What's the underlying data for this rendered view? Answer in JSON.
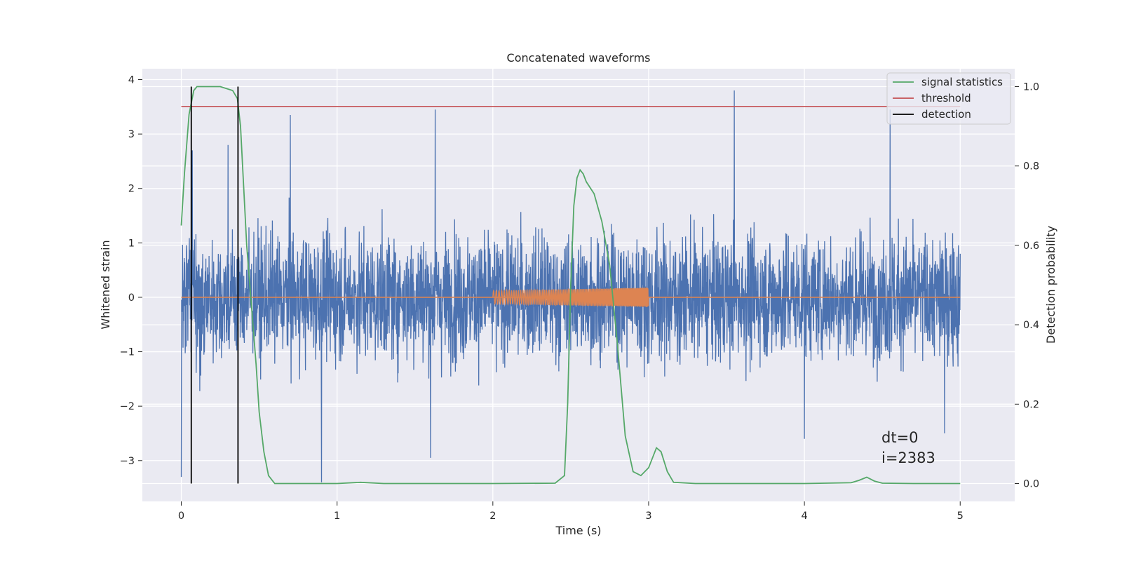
{
  "chart_data": {
    "type": "line",
    "title": "Concatenated waveforms",
    "xlabel": "Time (s)",
    "ylabel_left": "Whitened strain",
    "ylabel_right": "Detection probability",
    "xlim": [
      -0.25,
      5.35
    ],
    "ylim_left": [
      -3.75,
      4.2
    ],
    "ylim_right": [
      -0.045,
      1.045
    ],
    "x_ticks": [
      0,
      1,
      2,
      3,
      4,
      5
    ],
    "y_ticks_left": [
      -3,
      -2,
      -1,
      0,
      1,
      2,
      3,
      4
    ],
    "y_ticks_right": [
      0.0,
      0.2,
      0.4,
      0.6,
      0.8,
      1.0
    ],
    "y_tick_labels_left": [
      "−3",
      "−2",
      "−1",
      "0",
      "1",
      "2",
      "3",
      "4"
    ],
    "y_tick_labels_right": [
      "0.0",
      "0.2",
      "0.4",
      "0.6",
      "0.8",
      "1.0"
    ],
    "grid": true,
    "legend_position": "top-right",
    "colors": {
      "strain": "#4c72b0",
      "injection": "#dd8452",
      "signal_statistics": "#55a868",
      "threshold": "#c44e52",
      "detection": "#000000",
      "background": "#eaeaf2",
      "grid": "#ffffff"
    },
    "series": [
      {
        "name": "",
        "axis": "left",
        "kind": "noise",
        "x_range": [
          0,
          5
        ],
        "envelope": [
          -3.3,
          3.8
        ],
        "peaks": [
          [
            0.07,
            2.7
          ],
          [
            0.3,
            2.8
          ],
          [
            0.7,
            3.35
          ],
          [
            1.63,
            3.45
          ],
          [
            3.55,
            3.8
          ],
          [
            4.55,
            3.45
          ],
          [
            0.0,
            -3.3
          ],
          [
            0.9,
            -3.4
          ],
          [
            1.6,
            -2.95
          ],
          [
            4.0,
            -2.6
          ],
          [
            4.9,
            -2.5
          ]
        ]
      },
      {
        "name": "",
        "axis": "left",
        "kind": "chirp",
        "baseline": 0,
        "x_range": [
          0,
          5
        ],
        "chirp_x": [
          2.0,
          3.0
        ],
        "chirp_amp": [
          0.12,
          0.18
        ]
      },
      {
        "name": "signal statistics",
        "axis": "right",
        "x": [
          0.0,
          0.02,
          0.05,
          0.08,
          0.1,
          0.15,
          0.25,
          0.33,
          0.36,
          0.38,
          0.4,
          0.42,
          0.45,
          0.48,
          0.5,
          0.53,
          0.56,
          0.6,
          0.7,
          1.0,
          1.15,
          1.3,
          2.0,
          2.4,
          2.46,
          2.48,
          2.5,
          2.52,
          2.54,
          2.56,
          2.58,
          2.6,
          2.65,
          2.7,
          2.75,
          2.8,
          2.85,
          2.9,
          2.95,
          3.0,
          3.05,
          3.08,
          3.12,
          3.16,
          3.3,
          4.0,
          4.3,
          4.35,
          4.4,
          4.45,
          4.5,
          4.7,
          5.0
        ],
        "y": [
          0.65,
          0.78,
          0.93,
          0.99,
          1.0,
          1.0,
          1.0,
          0.99,
          0.97,
          0.9,
          0.75,
          0.6,
          0.45,
          0.3,
          0.18,
          0.08,
          0.02,
          0.0,
          0.0,
          0.0,
          0.003,
          0.0,
          0.0,
          0.001,
          0.02,
          0.2,
          0.5,
          0.7,
          0.77,
          0.79,
          0.78,
          0.76,
          0.73,
          0.66,
          0.55,
          0.35,
          0.12,
          0.03,
          0.02,
          0.04,
          0.09,
          0.08,
          0.03,
          0.003,
          0.0,
          0.0,
          0.002,
          0.008,
          0.016,
          0.006,
          0.001,
          0.0,
          0.0
        ]
      },
      {
        "name": "threshold",
        "axis": "right",
        "x": [
          0,
          5
        ],
        "y": [
          0.95,
          0.95
        ]
      },
      {
        "name": "detection",
        "axis": "right",
        "x": [
          0.064,
          0.364
        ],
        "y": [
          0.0,
          1.0
        ]
      }
    ],
    "annotations": [
      "dt=0",
      "i=2383"
    ]
  }
}
